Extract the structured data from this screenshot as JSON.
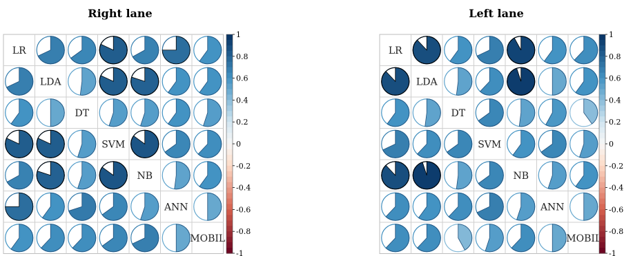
{
  "chart_data": [
    {
      "type": "correlation-pie-matrix",
      "title": "Right lane",
      "variables": [
        "LR",
        "LDA",
        "DT",
        "SVM",
        "NB",
        "ANN",
        "MOBIL"
      ],
      "matrix": [
        [
          null,
          0.68,
          0.65,
          0.82,
          0.67,
          0.75,
          0.6
        ],
        [
          0.68,
          null,
          0.52,
          0.82,
          0.8,
          0.6,
          0.6
        ],
        [
          0.6,
          0.5,
          null,
          0.55,
          0.55,
          0.6,
          0.55
        ],
        [
          0.82,
          0.82,
          0.55,
          null,
          0.85,
          0.65,
          0.62
        ],
        [
          0.67,
          0.8,
          0.55,
          0.85,
          null,
          0.52,
          0.6
        ],
        [
          0.75,
          0.6,
          0.7,
          0.65,
          0.55,
          null,
          0.5
        ],
        [
          0.6,
          0.62,
          0.62,
          0.65,
          0.68,
          0.5,
          null
        ]
      ],
      "colorbar": {
        "range": [
          -1,
          1
        ],
        "ticks": [
          "1",
          "0.8",
          "0.6",
          "0.4",
          "0.2",
          "0",
          "-0.2",
          "-0.4",
          "-0.6",
          "-0.8",
          "-1"
        ]
      }
    },
    {
      "type": "correlation-pie-matrix",
      "title": "Left lane",
      "variables": [
        "LR",
        "LDA",
        "DT",
        "SVM",
        "NB",
        "ANN",
        "MOBIL"
      ],
      "matrix": [
        [
          null,
          0.88,
          0.6,
          0.68,
          0.92,
          0.6,
          0.62
        ],
        [
          0.88,
          null,
          0.52,
          0.62,
          0.95,
          0.5,
          0.6
        ],
        [
          0.6,
          0.52,
          null,
          0.65,
          0.52,
          0.58,
          0.4
        ],
        [
          0.68,
          0.62,
          0.65,
          null,
          0.6,
          0.65,
          0.55
        ],
        [
          0.88,
          0.95,
          0.52,
          0.65,
          null,
          0.55,
          0.6
        ],
        [
          0.62,
          0.6,
          0.62,
          0.68,
          0.55,
          null,
          0.5
        ],
        [
          0.62,
          0.62,
          0.42,
          0.55,
          0.62,
          0.5,
          null
        ]
      ],
      "colorbar": {
        "range": [
          -1,
          1
        ],
        "ticks": [
          "1",
          "0.8",
          "0.6",
          "0.4",
          "0.2",
          "0",
          "-0.2",
          "-0.4",
          "-0.6",
          "-0.8",
          "-1"
        ]
      }
    }
  ]
}
